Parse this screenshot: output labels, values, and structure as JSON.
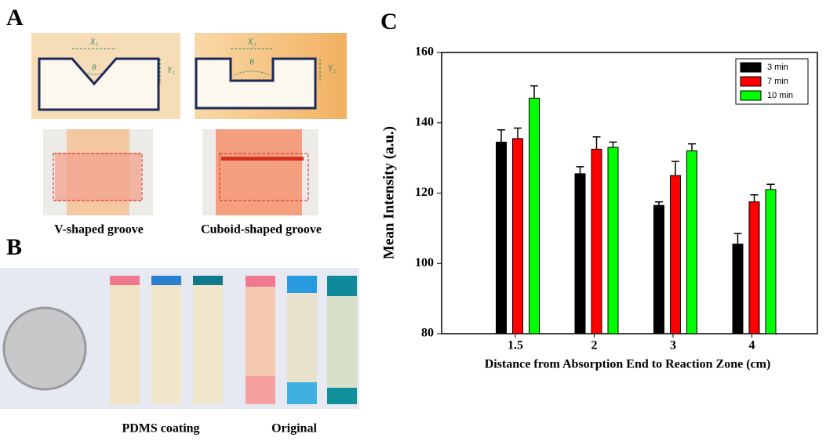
{
  "panels": {
    "a": {
      "label": "A",
      "left": {
        "x_dim": "X₁",
        "y_dim": "Y₁",
        "angle": "θ",
        "caption": "V-shaped groove"
      },
      "right": {
        "x_dim": "X₂",
        "y_dim": "Y₂",
        "angle": "θ",
        "caption": "Cuboid-shaped groove"
      }
    },
    "b": {
      "label": "B",
      "captions": [
        "PDMS coating",
        "Original"
      ]
    },
    "c": {
      "label": "C"
    }
  },
  "chart_data": {
    "type": "bar",
    "x_label": "Distance from Absorption End to Reaction Zone (cm)",
    "y_label": "Mean Intensity (a.u.)",
    "categories": [
      "1.5",
      "2",
      "3",
      "4"
    ],
    "series": [
      {
        "name": "3 min",
        "color": "#000000",
        "values": [
          134.5,
          125.5,
          116.5,
          105.5
        ],
        "errors": [
          3.5,
          2,
          1,
          3
        ]
      },
      {
        "name": "7 min",
        "color": "#ff0000",
        "values": [
          135.5,
          132.5,
          125,
          117.5
        ],
        "errors": [
          3,
          3.5,
          4,
          2
        ]
      },
      {
        "name": "10 min",
        "color": "#00ff00",
        "values": [
          147,
          133,
          132,
          121
        ],
        "errors": [
          3.5,
          1.5,
          2,
          1.5
        ]
      }
    ],
    "ylim": [
      80,
      160
    ],
    "yticks": [
      80,
      100,
      120,
      140,
      160
    ],
    "grid": false,
    "legend": "top-right"
  }
}
